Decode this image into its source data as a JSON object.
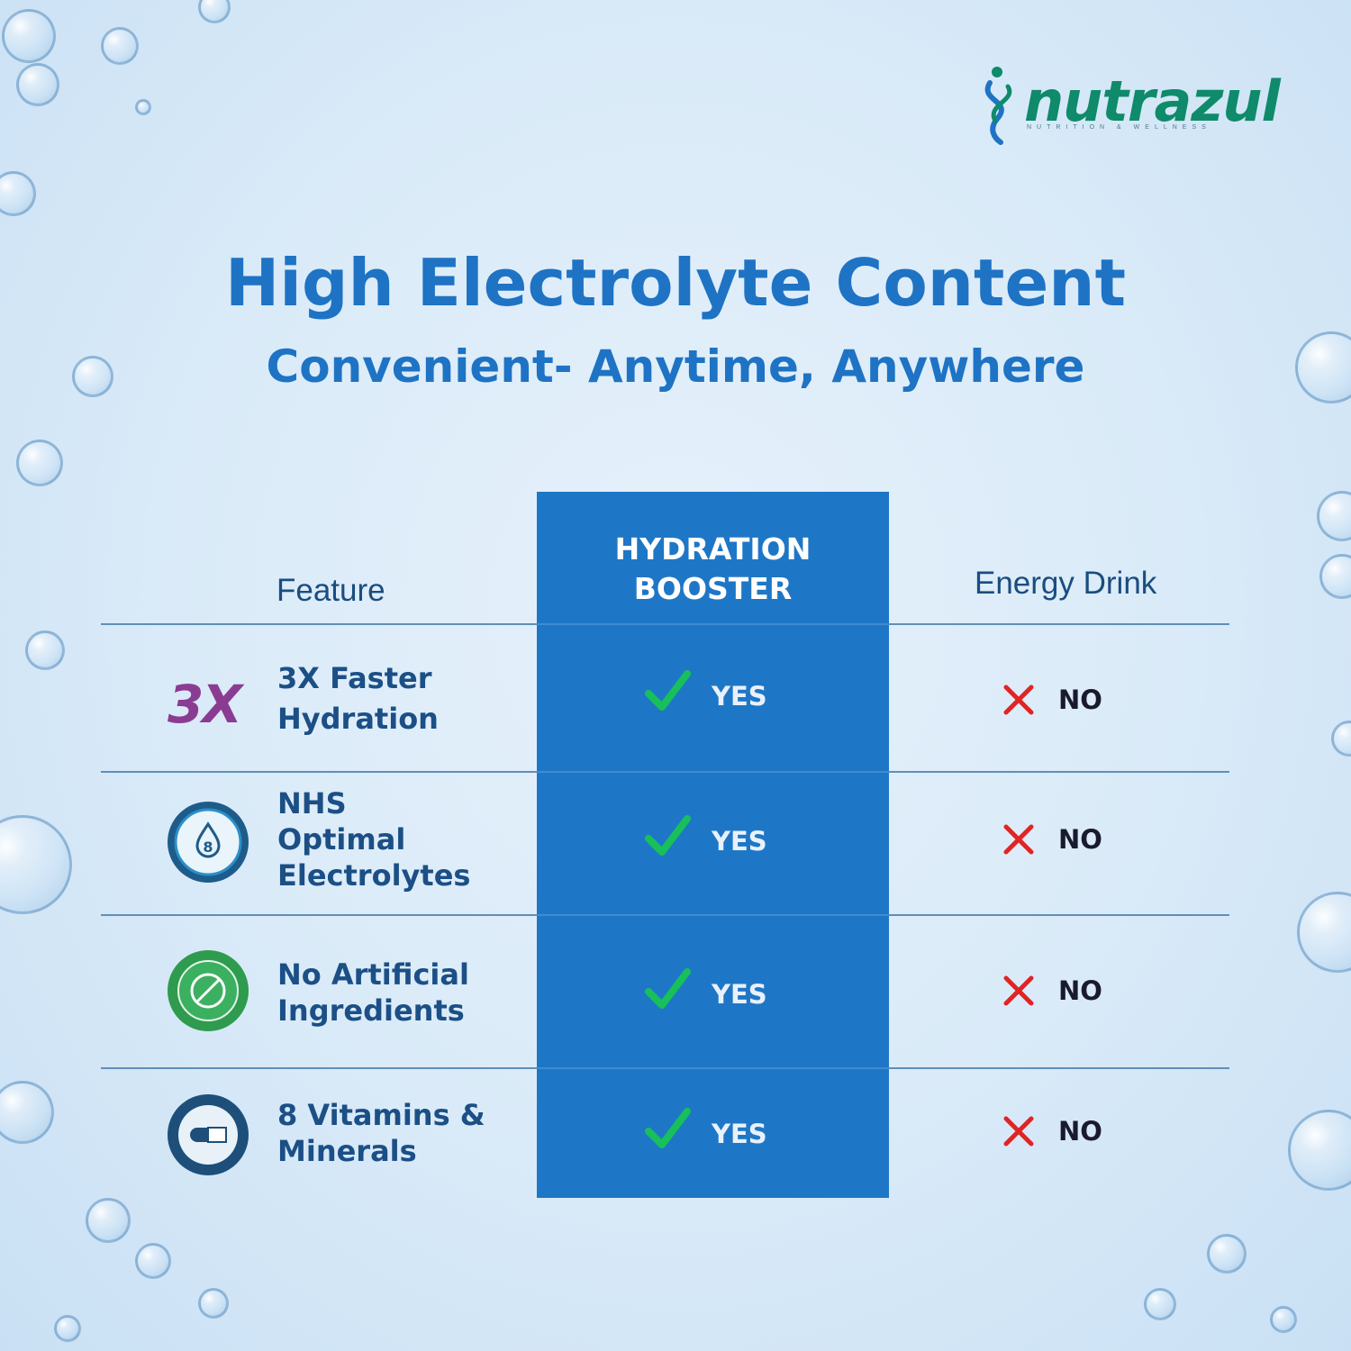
{
  "brand": {
    "name": "nutrazul",
    "tagline": "NUTRITION & WELLNESS",
    "colors": {
      "primary": "#1e73c4",
      "logo_green": "#0f8a6a",
      "highlight_column": "#1e77c6",
      "check": "#17c05a",
      "cross": "#e02424"
    }
  },
  "heading": {
    "title": "High Electrolyte Content",
    "subtitle": "Convenient- Anytime, Anywhere"
  },
  "table": {
    "columns": {
      "feature": "Feature",
      "highlight_line1": "HYDRATION",
      "highlight_line2": "BOOSTER",
      "competitor": "Energy Drink"
    },
    "rows": [
      {
        "icon": "3x-badge-icon",
        "icon_text": "3X",
        "label_lines": [
          "3X Faster",
          "Hydration"
        ],
        "ours": "YES",
        "theirs": "NO"
      },
      {
        "icon": "nhs-electrolytes-badge-icon",
        "icon_text": "8",
        "label_lines": [
          "NHS",
          "Optimal",
          "Electrolytes"
        ],
        "ours": "YES",
        "theirs": "NO"
      },
      {
        "icon": "no-artificial-ingredients-badge-icon",
        "icon_text": "NO ARTIFICIAL INGREDIENTS",
        "label_lines": [
          "No Artificial",
          "Ingredients"
        ],
        "ours": "YES",
        "theirs": "NO"
      },
      {
        "icon": "vitamins-minerals-badge-icon",
        "icon_text": "Vitamins & Minerals",
        "label_lines": [
          "8 Vitamins &",
          "Minerals"
        ],
        "ours": "YES",
        "theirs": "NO"
      }
    ]
  }
}
